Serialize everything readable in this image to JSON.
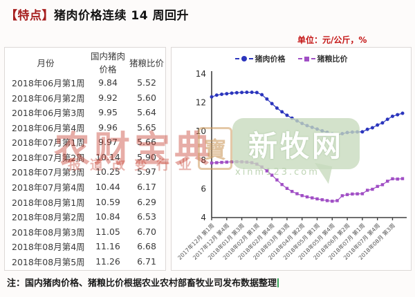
{
  "page": {
    "title_tag": "【特点】",
    "title": "猪肉价格连续 14 周回升",
    "unit_label": "单位：元/公斤，%",
    "footnote": "注：国内猪肉价格、猪粮比价根据农业农村部畜牧业司发布数据整理"
  },
  "table": {
    "headers": [
      "月份",
      "国内猪肉价格",
      "猪粮比价"
    ],
    "rows": [
      [
        "2018年06月第1周",
        "9.84",
        "5.52"
      ],
      [
        "2018年06月第2周",
        "9.92",
        "5.60"
      ],
      [
        "2018年06月第3周",
        "9.95",
        "5.64"
      ],
      [
        "2018年06月第4周",
        "9.96",
        "5.65"
      ],
      [
        "2018年07月第1周",
        "9.97",
        "5.66"
      ],
      [
        "2018年07月第2周",
        "10.14",
        "5.90"
      ],
      [
        "2018年07月第3周",
        "10.25",
        "5.97"
      ],
      [
        "2018年07月第4周",
        "10.44",
        "6.17"
      ],
      [
        "2018年08月第1周",
        "10.59",
        "6.29"
      ],
      [
        "2018年08月第2周",
        "10.84",
        "6.53"
      ],
      [
        "2018年08月第3周",
        "11.05",
        "6.70"
      ],
      [
        "2018年08月第4周",
        "11.16",
        "6.68"
      ],
      [
        "2018年08月第5周",
        "11.26",
        "6.71"
      ]
    ]
  },
  "watermarks": {
    "red_main": "农财宝典",
    "red_sub": "报道改变行业",
    "seal_char": "寶",
    "green_main": "新牧网",
    "green_url": "xinm123.com"
  },
  "chart_data": {
    "type": "line",
    "unit": "元/公斤，%",
    "ylim": [
      4,
      14
    ],
    "yticks": [
      4,
      6,
      8,
      10,
      12,
      14
    ],
    "grid": false,
    "legend_position": "top",
    "x_tick_indices": [
      0,
      3,
      6,
      9,
      12,
      15,
      18,
      21,
      24,
      27,
      30,
      33,
      36
    ],
    "x_tick_labels": [
      "2017年12月 第1周",
      "2017年12月 第4周",
      "2018年01月 第3周",
      "2018年02月 第1周",
      "2018年02月 第4周",
      "2018年03月 第3周",
      "2018年04月 第2周",
      "2018年05月 第1周",
      "2018年05月 第4周",
      "2018年06月 第2周",
      "2018年07月 第1周",
      "2018年07月 第4周",
      "2018年08月 第3周"
    ],
    "series": [
      {
        "name": "猪肉价格",
        "color": "#2b35bd",
        "marker": "circle",
        "values": [
          12.4,
          12.52,
          12.58,
          12.62,
          12.66,
          12.69,
          12.71,
          12.72,
          12.72,
          12.7,
          12.55,
          12.25,
          11.93,
          11.62,
          11.36,
          11.12,
          10.92,
          10.73,
          10.55,
          10.4,
          10.28,
          10.16,
          10.04,
          9.93,
          9.83,
          9.74,
          9.84,
          9.92,
          9.95,
          9.96,
          9.97,
          10.14,
          10.25,
          10.44,
          10.59,
          10.84,
          11.05,
          11.16,
          11.26
        ]
      },
      {
        "name": "猪粮比价",
        "color": "#a04ec5",
        "marker": "square",
        "values": [
          7.8,
          7.82,
          7.84,
          7.86,
          7.88,
          7.89,
          7.88,
          7.86,
          7.82,
          7.72,
          7.52,
          7.25,
          6.95,
          6.62,
          6.3,
          6.03,
          5.82,
          5.66,
          5.53,
          5.44,
          5.37,
          5.3,
          5.24,
          5.18,
          5.14,
          5.18,
          5.52,
          5.6,
          5.64,
          5.65,
          5.66,
          5.9,
          5.97,
          6.17,
          6.29,
          6.53,
          6.7,
          6.68,
          6.71
        ]
      }
    ]
  }
}
